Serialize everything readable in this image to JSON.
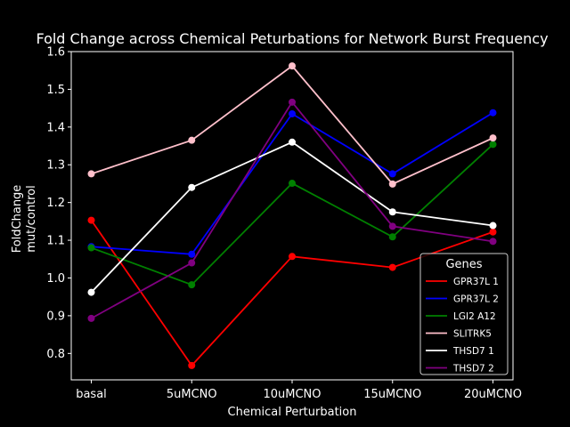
{
  "chart_data": {
    "type": "line",
    "title": "Fold Change across Chemical Peturbations for Network Burst Frequency",
    "xlabel": "Chemical Perturbation",
    "ylabel_lines": [
      "FoldChange",
      "mut/control"
    ],
    "categories": [
      "basal",
      "5uMCNO",
      "10uMCNO",
      "15uMCNO",
      "20uMCNO"
    ],
    "ylim": [
      0.73,
      1.6
    ],
    "yticks": [
      0.8,
      0.9,
      1.0,
      1.1,
      1.2,
      1.3,
      1.4,
      1.5,
      1.6
    ],
    "ytick_labels": [
      "0.8",
      "0.9",
      "1.0",
      "1.1",
      "1.2",
      "1.3",
      "1.4",
      "1.5",
      "1.6"
    ],
    "grid": false,
    "legend": {
      "title": "Genes",
      "placement": "lower-right"
    },
    "series": [
      {
        "name": "GPR37L 1",
        "color": "#ff0000",
        "values": [
          1.153,
          0.768,
          1.057,
          1.028,
          1.122
        ]
      },
      {
        "name": "GPR37L 2",
        "color": "#0000ff",
        "values": [
          1.083,
          1.063,
          1.435,
          1.276,
          1.438
        ]
      },
      {
        "name": "LGI2 A12",
        "color": "#008000",
        "values": [
          1.08,
          0.982,
          1.251,
          1.109,
          1.354
        ]
      },
      {
        "name": "SLITRK5",
        "color": "#ffc0cb",
        "values": [
          1.276,
          1.365,
          1.562,
          1.249,
          1.371
        ]
      },
      {
        "name": "THSD7 1",
        "color": "#ffffff",
        "values": [
          0.962,
          1.24,
          1.36,
          1.175,
          1.139
        ]
      },
      {
        "name": "THSD7 2",
        "color": "#800080",
        "values": [
          0.893,
          1.04,
          1.466,
          1.137,
          1.097
        ]
      }
    ]
  }
}
